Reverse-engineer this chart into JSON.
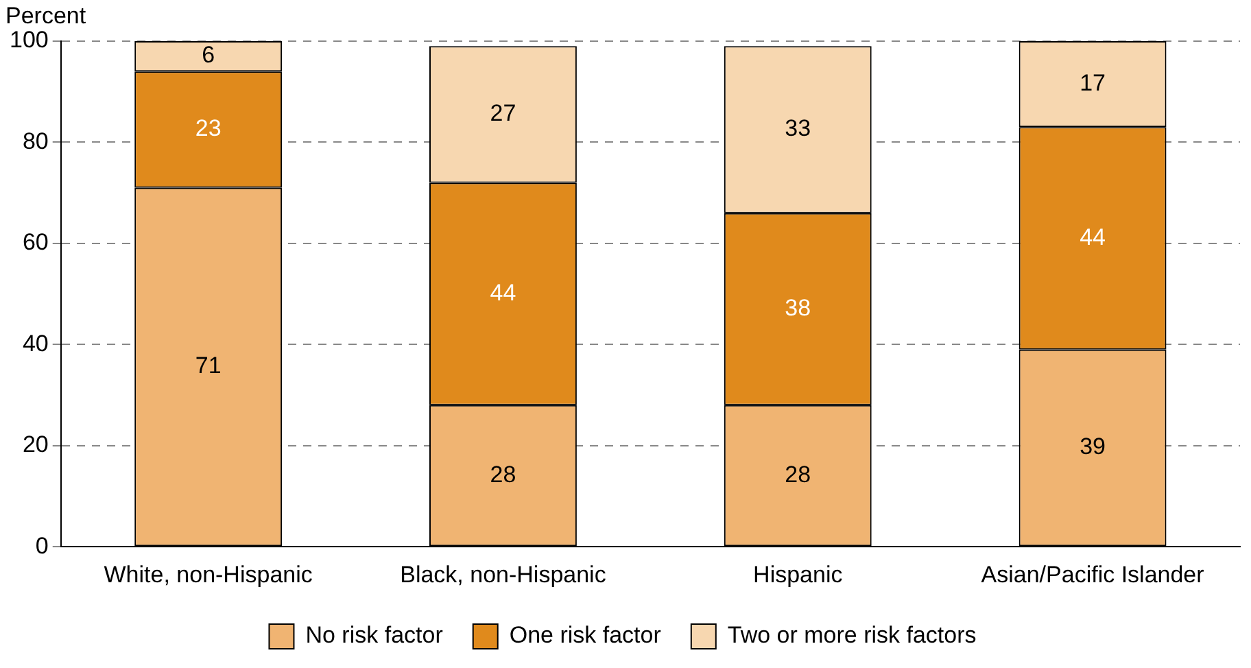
{
  "chart_data": {
    "type": "bar",
    "stacked": true,
    "ylabel": "Percent",
    "categories": [
      "White, non-Hispanic",
      "Black, non-Hispanic",
      "Hispanic",
      "Asian/Pacific Islander"
    ],
    "series": [
      {
        "name": "No risk factor",
        "color": "#f0b472",
        "values": [
          71,
          28,
          28,
          39
        ]
      },
      {
        "name": "One risk factor",
        "color": "#e08a1c",
        "values": [
          23,
          44,
          38,
          44
        ]
      },
      {
        "name": "Two or more risk factors",
        "color": "#f7d7b0",
        "values": [
          6,
          27,
          33,
          17
        ]
      }
    ],
    "ylim": [
      0,
      100
    ],
    "yticks": [
      0,
      20,
      40,
      60,
      80,
      100
    ],
    "grid": "y",
    "legend": "bottom",
    "data_labels": true
  }
}
